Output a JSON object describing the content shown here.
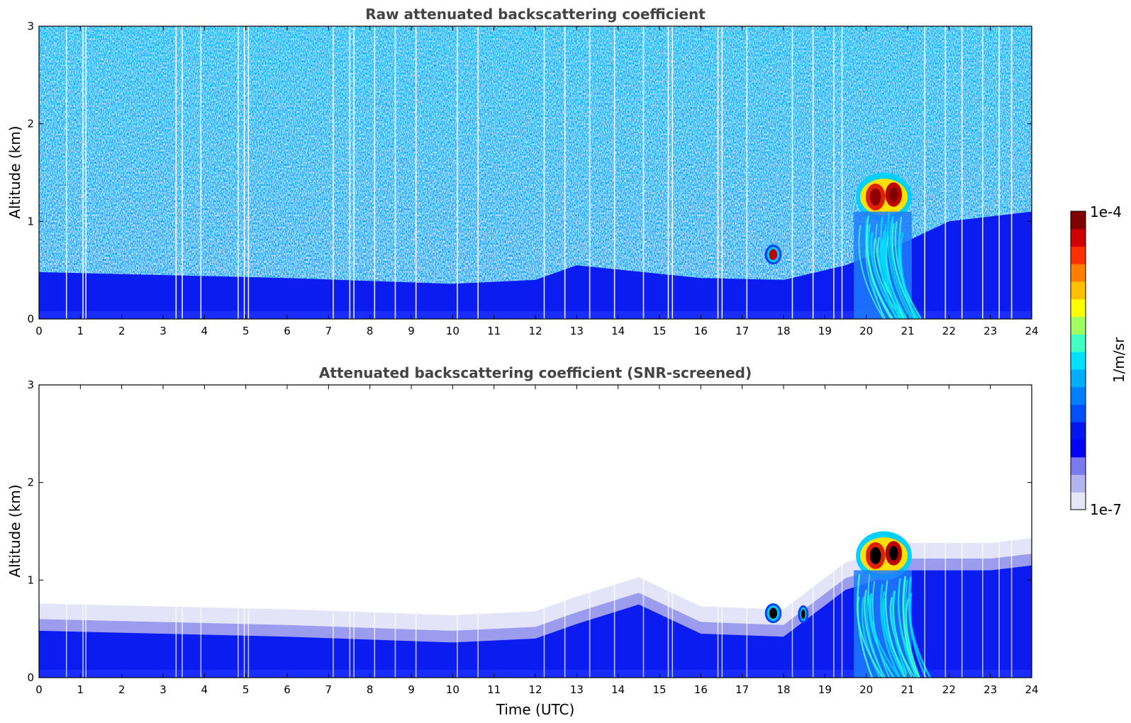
{
  "chart_data": [
    {
      "type": "heatmap",
      "title": "Raw attenuated backscattering coefficient",
      "xlabel": "",
      "ylabel": "Altitude (km)",
      "xlim": [
        0,
        24
      ],
      "ylim": [
        0,
        3
      ],
      "xticks": [
        0,
        1,
        2,
        3,
        4,
        5,
        6,
        7,
        8,
        9,
        10,
        11,
        12,
        13,
        14,
        15,
        16,
        17,
        18,
        19,
        20,
        21,
        22,
        23,
        24
      ],
      "yticks": [
        0,
        1,
        2,
        3
      ],
      "features": [
        {
          "name": "boundary layer",
          "t_start": 0,
          "t_end": 24,
          "top_km": [
            [
              0,
              0.48
            ],
            [
              6,
              0.42
            ],
            [
              10,
              0.36
            ],
            [
              12,
              0.4
            ],
            [
              13,
              0.55
            ],
            [
              16,
              0.42
            ],
            [
              18,
              0.4
            ],
            [
              19.5,
              0.55
            ],
            [
              21,
              0.8
            ],
            [
              22,
              1.0
            ],
            [
              24,
              1.1
            ]
          ]
        },
        {
          "name": "cloud",
          "t_start": 17.6,
          "t_end": 17.9,
          "base_km": 0.58,
          "top_km": 0.74
        },
        {
          "name": "cloud",
          "t_start": 19.75,
          "t_end": 21.1,
          "base_km": 1.0,
          "top_km": 1.5
        },
        {
          "name": "rain streaks",
          "t_start": 19.7,
          "t_end": 21.1,
          "base_km": 0.0,
          "top_km": 1.1
        }
      ],
      "noise_above_km": 0.45
    },
    {
      "type": "heatmap",
      "title": "Attenuated backscattering coefficient (SNR-screened)",
      "xlabel": "Time (UTC)",
      "ylabel": "Altitude (km)",
      "xlim": [
        0,
        24
      ],
      "ylim": [
        0,
        3
      ],
      "xticks": [
        0,
        1,
        2,
        3,
        4,
        5,
        6,
        7,
        8,
        9,
        10,
        11,
        12,
        13,
        14,
        15,
        16,
        17,
        18,
        19,
        20,
        21,
        22,
        23,
        24
      ],
      "yticks": [
        0,
        1,
        2,
        3
      ],
      "features": [
        {
          "name": "boundary layer",
          "t_start": 0,
          "t_end": 24,
          "top_km": [
            [
              0,
              0.48
            ],
            [
              6,
              0.42
            ],
            [
              10,
              0.36
            ],
            [
              12,
              0.4
            ],
            [
              13,
              0.55
            ],
            [
              14.5,
              0.75
            ],
            [
              16,
              0.45
            ],
            [
              18,
              0.42
            ],
            [
              19.5,
              0.9
            ],
            [
              21,
              1.1
            ],
            [
              23,
              1.1
            ],
            [
              24,
              1.15
            ]
          ]
        },
        {
          "name": "cloud",
          "t_start": 17.6,
          "t_end": 17.9,
          "base_km": 0.58,
          "top_km": 0.74
        },
        {
          "name": "cloud",
          "t_start": 18.4,
          "t_end": 18.55,
          "base_km": 0.58,
          "top_km": 0.72
        },
        {
          "name": "cloud",
          "t_start": 19.75,
          "t_end": 21.1,
          "base_km": 1.0,
          "top_km": 1.5
        },
        {
          "name": "rain streaks",
          "t_start": 19.7,
          "t_end": 21.1,
          "base_km": 0.0,
          "top_km": 1.1
        }
      ]
    }
  ],
  "colorbar": {
    "label": "1/m/sr",
    "max_label": "1e-4",
    "min_label": "1e-7",
    "range": [
      1e-07,
      0.0001
    ],
    "scale": "log",
    "colors": [
      "#e6e6f7",
      "#b3b3f0",
      "#7a7aee",
      "#0000ff",
      "#0018f0",
      "#0050ff",
      "#0080ff",
      "#00b0ff",
      "#00e0ff",
      "#40ffc0",
      "#a0ff60",
      "#ffff00",
      "#ffc000",
      "#ff8000",
      "#ff3000",
      "#d00000",
      "#800000"
    ]
  }
}
